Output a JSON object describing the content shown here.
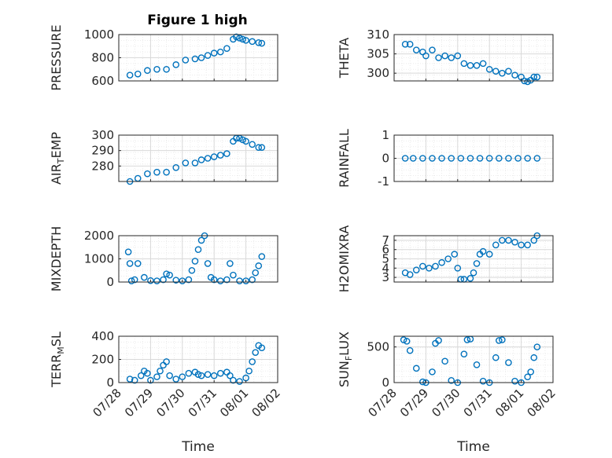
{
  "figure": {
    "title": "Figure 1 high",
    "marker_color": "#0072BD",
    "axis_color": "#262626",
    "grid_color": "#d9d9d9",
    "x_tick_labels": [
      "07/28",
      "07/29",
      "07/30",
      "07/31",
      "08/01",
      "08/02"
    ],
    "x_label": "Time"
  },
  "chart_data": [
    {
      "type": "scatter",
      "ylabel": "PRESSURE",
      "ylim": [
        600,
        1000
      ],
      "yticks": [
        600,
        800,
        1000
      ],
      "x_range_days": [
        0,
        5
      ],
      "title": "Figure 1 high",
      "x": [
        0.35,
        0.6,
        0.9,
        1.2,
        1.5,
        1.8,
        2.1,
        2.4,
        2.6,
        2.8,
        3.0,
        3.2,
        3.4,
        3.6,
        3.7,
        3.8,
        3.9,
        4.0,
        4.2,
        4.4,
        4.5
      ],
      "y": [
        650,
        660,
        690,
        700,
        700,
        740,
        780,
        790,
        800,
        820,
        840,
        850,
        880,
        960,
        980,
        970,
        960,
        950,
        940,
        930,
        925
      ]
    },
    {
      "type": "scatter",
      "ylabel": "THETA",
      "ylim": [
        298,
        310
      ],
      "yticks": [
        300,
        305,
        310
      ],
      "x_range_days": [
        0,
        5
      ],
      "x": [
        0.35,
        0.5,
        0.7,
        0.9,
        1.0,
        1.2,
        1.4,
        1.6,
        1.8,
        2.0,
        2.2,
        2.4,
        2.6,
        2.8,
        3.0,
        3.2,
        3.4,
        3.6,
        3.8,
        4.0,
        4.1,
        4.2,
        4.3,
        4.4,
        4.5
      ],
      "y": [
        307.5,
        307.5,
        306,
        305.5,
        304.5,
        306,
        304,
        304.5,
        304,
        304.5,
        302.5,
        302,
        302,
        302.5,
        301,
        300.5,
        300,
        300.5,
        299.5,
        299,
        298,
        297.8,
        298.2,
        299,
        299
      ]
    },
    {
      "type": "scatter",
      "ylabel": "AIR_TEMP",
      "ylim": [
        270,
        300
      ],
      "yticks": [
        280,
        290,
        300
      ],
      "x_range_days": [
        0,
        5
      ],
      "x": [
        0.35,
        0.6,
        0.9,
        1.2,
        1.5,
        1.8,
        2.1,
        2.4,
        2.6,
        2.8,
        3.0,
        3.2,
        3.4,
        3.6,
        3.7,
        3.8,
        3.9,
        4.0,
        4.2,
        4.4,
        4.5
      ],
      "y": [
        270,
        272,
        275,
        276,
        276,
        279,
        282,
        282,
        284,
        285,
        286,
        287,
        288,
        296,
        298,
        298,
        297,
        296,
        294,
        292,
        292
      ]
    },
    {
      "type": "scatter",
      "ylabel": "RAINFALL",
      "ylim": [
        -1,
        1
      ],
      "yticks": [
        -1,
        0,
        1
      ],
      "x_range_days": [
        0,
        5
      ],
      "x": [
        0.35,
        0.6,
        0.9,
        1.2,
        1.5,
        1.8,
        2.1,
        2.4,
        2.7,
        3.0,
        3.3,
        3.6,
        3.9,
        4.2,
        4.5
      ],
      "y": [
        0,
        0,
        0,
        0,
        0,
        0,
        0,
        0,
        0,
        0,
        0,
        0,
        0,
        0,
        0
      ]
    },
    {
      "type": "scatter",
      "ylabel": "MIXDEPTH",
      "ylim": [
        0,
        2000
      ],
      "yticks": [
        0,
        1000,
        2000
      ],
      "x_range_days": [
        0,
        5
      ],
      "x": [
        0.3,
        0.35,
        0.4,
        0.5,
        0.6,
        0.8,
        1.0,
        1.2,
        1.4,
        1.5,
        1.6,
        1.8,
        2.0,
        2.2,
        2.3,
        2.4,
        2.5,
        2.6,
        2.7,
        2.8,
        2.9,
        3.0,
        3.2,
        3.4,
        3.5,
        3.6,
        3.8,
        4.0,
        4.2,
        4.3,
        4.4,
        4.5
      ],
      "y": [
        1300,
        800,
        50,
        100,
        800,
        200,
        60,
        50,
        100,
        350,
        300,
        80,
        50,
        100,
        500,
        900,
        1400,
        1800,
        2000,
        800,
        200,
        100,
        50,
        100,
        800,
        300,
        50,
        50,
        100,
        400,
        700,
        1100
      ]
    },
    {
      "type": "scatter",
      "ylabel": "H2OMIXRA",
      "ylim": [
        2.5,
        7.5
      ],
      "yticks": [
        3,
        4,
        5,
        6,
        7
      ],
      "x_range_days": [
        0,
        5
      ],
      "x": [
        0.35,
        0.5,
        0.7,
        0.9,
        1.1,
        1.3,
        1.5,
        1.7,
        1.9,
        2.0,
        2.1,
        2.2,
        2.4,
        2.5,
        2.6,
        2.7,
        2.8,
        3.0,
        3.2,
        3.4,
        3.6,
        3.8,
        4.0,
        4.2,
        4.4,
        4.5
      ],
      "y": [
        3.5,
        3.3,
        3.8,
        4.2,
        4.0,
        4.2,
        4.6,
        5.0,
        5.5,
        4.0,
        2.8,
        2.8,
        2.9,
        3.5,
        4.5,
        5.5,
        5.8,
        5.5,
        6.5,
        7.0,
        7.0,
        6.8,
        6.5,
        6.5,
        7.0,
        7.5
      ]
    },
    {
      "type": "scatter",
      "ylabel": "TERR_MSL",
      "ylim": [
        0,
        400
      ],
      "yticks": [
        0,
        200,
        400
      ],
      "x_range_days": [
        0,
        5
      ],
      "x": [
        0.35,
        0.5,
        0.7,
        0.8,
        0.9,
        1.0,
        1.2,
        1.3,
        1.4,
        1.5,
        1.6,
        1.8,
        2.0,
        2.2,
        2.4,
        2.5,
        2.6,
        2.8,
        3.0,
        3.2,
        3.4,
        3.5,
        3.6,
        3.8,
        4.0,
        4.1,
        4.2,
        4.3,
        4.4,
        4.5
      ],
      "y": [
        30,
        20,
        60,
        100,
        80,
        20,
        50,
        100,
        150,
        180,
        60,
        30,
        50,
        80,
        90,
        70,
        60,
        70,
        60,
        80,
        90,
        60,
        20,
        10,
        40,
        100,
        180,
        260,
        320,
        300
      ]
    },
    {
      "type": "scatter",
      "ylabel": "SUN_FLUX",
      "ylim": [
        0,
        650
      ],
      "yticks": [
        0,
        500
      ],
      "x_range_days": [
        0,
        5
      ],
      "x": [
        0.3,
        0.4,
        0.5,
        0.7,
        0.9,
        1.0,
        1.2,
        1.3,
        1.4,
        1.6,
        1.8,
        2.0,
        2.2,
        2.3,
        2.4,
        2.6,
        2.8,
        3.0,
        3.2,
        3.3,
        3.4,
        3.6,
        3.8,
        4.0,
        4.2,
        4.3,
        4.4,
        4.5
      ],
      "y": [
        600,
        580,
        450,
        200,
        10,
        0,
        150,
        550,
        590,
        300,
        30,
        0,
        400,
        600,
        610,
        250,
        20,
        0,
        350,
        590,
        600,
        280,
        20,
        0,
        80,
        150,
        350,
        500
      ]
    }
  ]
}
